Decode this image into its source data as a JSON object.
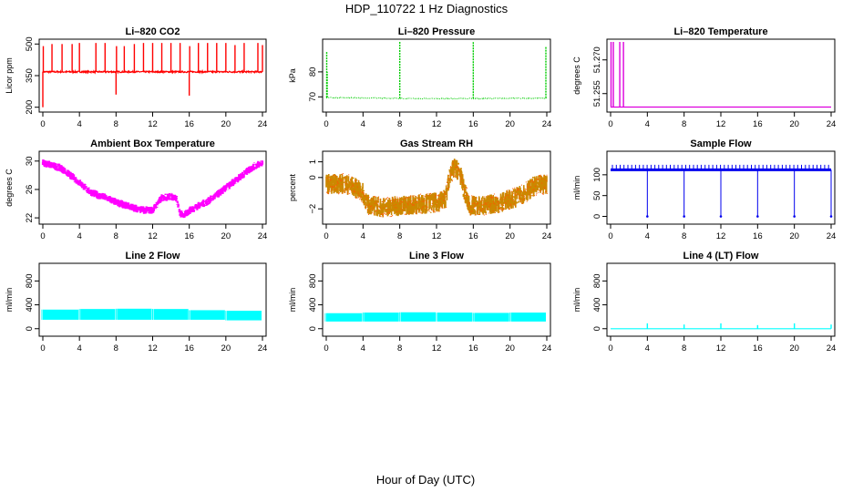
{
  "figure": {
    "title": "HDP_110722  1 Hz Diagnostics",
    "xlabel": "Hour of Day (UTC)"
  },
  "chart_data": [
    {
      "id": "co2",
      "type": "line",
      "title": "Li–820 CO2",
      "ylabel": "Licor ppm",
      "color": "#ff0000",
      "xlim": [
        0,
        24
      ],
      "xticks": [
        "0",
        "4",
        "8",
        "12",
        "16",
        "20",
        "24"
      ],
      "ylim": [
        190,
        510
      ],
      "yticks": [
        {
          "v": 200,
          "t": "200"
        },
        {
          "v": 350,
          "t": "350"
        },
        {
          "v": 500,
          "t": "500"
        }
      ],
      "style": "noisy",
      "noise": 7,
      "base": [
        [
          0,
          368
        ],
        [
          24,
          368
        ]
      ],
      "spikes": [
        [
          0.0,
          200
        ],
        [
          0.05,
          490
        ],
        [
          1,
          500
        ],
        [
          2.1,
          500
        ],
        [
          3.2,
          500
        ],
        [
          4,
          505
        ],
        [
          5.8,
          505
        ],
        [
          6.8,
          505
        ],
        [
          8,
          260
        ],
        [
          8.05,
          490
        ],
        [
          8.9,
          490
        ],
        [
          10,
          500
        ],
        [
          11,
          505
        ],
        [
          12,
          505
        ],
        [
          13,
          505
        ],
        [
          14,
          505
        ],
        [
          15,
          505
        ],
        [
          16,
          255
        ],
        [
          16.05,
          490
        ],
        [
          17,
          505
        ],
        [
          18,
          505
        ],
        [
          19,
          505
        ],
        [
          20,
          505
        ],
        [
          21,
          495
        ],
        [
          22,
          505
        ],
        [
          23.5,
          505
        ],
        [
          24,
          495
        ]
      ]
    },
    {
      "id": "pressure",
      "type": "line",
      "title": "Li–820 Pressure",
      "ylabel": "kPa",
      "color": "#00cc00",
      "xlim": [
        0,
        24
      ],
      "xticks": [
        "0",
        "4",
        "8",
        "12",
        "16",
        "20",
        "24"
      ],
      "ylim": [
        65,
        92
      ],
      "yticks": [
        {
          "v": 70,
          "t": "70"
        },
        {
          "v": 80,
          "t": "80"
        }
      ],
      "style": "dots",
      "noise": 0.3,
      "base": [
        [
          0,
          69.7
        ],
        [
          4,
          69.6
        ],
        [
          8,
          69.4
        ],
        [
          12,
          69.3
        ],
        [
          16,
          69.3
        ],
        [
          20,
          69.4
        ],
        [
          24,
          69.5
        ]
      ],
      "spikes": [
        [
          0.05,
          88
        ],
        [
          0.1,
          80
        ],
        [
          8,
          92
        ],
        [
          16,
          92
        ],
        [
          23.9,
          90
        ]
      ]
    },
    {
      "id": "licor_temp",
      "type": "line",
      "title": "Li–820 Temperature",
      "ylabel": "degrees C",
      "color": "#dd00dd",
      "xlim": [
        0,
        24
      ],
      "xticks": [
        "0",
        "4",
        "8",
        "12",
        "16",
        "20",
        "24"
      ],
      "ylim": [
        51.248,
        51.278
      ],
      "yticks": [
        {
          "v": 51.255,
          "t": "51.255"
        },
        {
          "v": 51.27,
          "t": "51.270"
        }
      ],
      "style": "clean",
      "noise": 0,
      "base": [
        [
          0,
          51.249
        ],
        [
          24,
          51.249
        ]
      ],
      "spikes": [
        [
          0.05,
          51.278
        ],
        [
          0.3,
          51.278
        ],
        [
          1,
          51.278
        ],
        [
          1.4,
          51.278
        ]
      ]
    },
    {
      "id": "box_temp",
      "type": "line",
      "title": "Ambient Box Temperature",
      "ylabel": "degrees C",
      "color": "#ff00ff",
      "xlim": [
        0,
        24
      ],
      "xticks": [
        "0",
        "4",
        "8",
        "12",
        "16",
        "20",
        "24"
      ],
      "ylim": [
        21.5,
        31
      ],
      "yticks": [
        {
          "v": 22,
          "t": "22"
        },
        {
          "v": 26,
          "t": "26"
        },
        {
          "v": 30,
          "t": "30"
        }
      ],
      "style": "band",
      "noise": 1.1,
      "base": [
        [
          0,
          29.8
        ],
        [
          1,
          29.4
        ],
        [
          2,
          29.0
        ],
        [
          3,
          28.0
        ],
        [
          4,
          27.0
        ],
        [
          5,
          25.8
        ],
        [
          6,
          25.2
        ],
        [
          7,
          24.8
        ],
        [
          8,
          24.2
        ],
        [
          9,
          23.8
        ],
        [
          10,
          23.4
        ],
        [
          11,
          23.1
        ],
        [
          12,
          23.1
        ],
        [
          13,
          24.8
        ],
        [
          14,
          25.0
        ],
        [
          14.6,
          24.8
        ],
        [
          15,
          22.6
        ],
        [
          15.5,
          22.4
        ],
        [
          16,
          23.0
        ],
        [
          17,
          23.7
        ],
        [
          18,
          24.3
        ],
        [
          19,
          25.2
        ],
        [
          20,
          26.2
        ],
        [
          21,
          27.2
        ],
        [
          22,
          28.2
        ],
        [
          23,
          29.2
        ],
        [
          24,
          29.8
        ]
      ],
      "spikes": []
    },
    {
      "id": "rh",
      "type": "line",
      "title": "Gas Stream RH",
      "ylabel": "percent",
      "color": "#cc8800",
      "xlim": [
        0,
        24
      ],
      "xticks": [
        "0",
        "4",
        "8",
        "12",
        "16",
        "20",
        "24"
      ],
      "ylim": [
        -2.8,
        1.5
      ],
      "yticks": [
        {
          "v": -2,
          "t": "−2"
        },
        {
          "v": 0,
          "t": "0"
        },
        {
          "v": 1,
          "t": "1"
        }
      ],
      "style": "band2",
      "noise": 1.3,
      "base": [
        [
          0,
          -0.4
        ],
        [
          2,
          -0.4
        ],
        [
          3,
          -0.6
        ],
        [
          4,
          -1.0
        ],
        [
          4.5,
          -1.7
        ],
        [
          6,
          -1.9
        ],
        [
          8,
          -1.8
        ],
        [
          10,
          -1.7
        ],
        [
          12,
          -1.6
        ],
        [
          13,
          -1.3
        ],
        [
          13.5,
          0.3
        ],
        [
          14,
          0.6
        ],
        [
          14.5,
          0.4
        ],
        [
          15,
          -0.8
        ],
        [
          15.5,
          -1.8
        ],
        [
          17,
          -1.8
        ],
        [
          19,
          -1.6
        ],
        [
          21,
          -1.2
        ],
        [
          22.5,
          -0.6
        ],
        [
          24,
          -0.4
        ]
      ],
      "spikes": []
    },
    {
      "id": "sample_flow",
      "type": "line",
      "title": "Sample Flow",
      "ylabel": "ml/min",
      "color": "#0000ee",
      "xlim": [
        0,
        24
      ],
      "xticks": [
        "0",
        "4",
        "8",
        "12",
        "16",
        "20",
        "24"
      ],
      "ylim": [
        -12,
        150
      ],
      "yticks": [
        {
          "v": 0,
          "t": "0"
        },
        {
          "v": 50,
          "t": "50"
        },
        {
          "v": 100,
          "t": "100"
        }
      ],
      "style": "fence",
      "noise": 12,
      "base": [
        [
          0,
          112
        ],
        [
          24,
          112
        ]
      ],
      "spikes": [
        [
          4,
          0
        ],
        [
          8,
          0
        ],
        [
          12,
          0
        ],
        [
          16,
          0
        ],
        [
          20,
          0
        ],
        [
          24,
          0
        ]
      ]
    },
    {
      "id": "line2_flow",
      "type": "line",
      "title": "Line 2 Flow",
      "ylabel": "ml/min",
      "color": "#00ffff",
      "xlim": [
        0,
        24
      ],
      "xticks": [
        "0",
        "4",
        "8",
        "12",
        "16",
        "20",
        "24"
      ],
      "ylim": [
        -80,
        1050
      ],
      "yticks": [
        {
          "v": 0,
          "t": "0"
        },
        {
          "v": 400,
          "t": "400"
        },
        {
          "v": 800,
          "t": "800"
        }
      ],
      "style": "block",
      "noise": 0,
      "segments": [
        [
          0,
          4,
          150,
          320
        ],
        [
          4,
          8,
          150,
          330
        ],
        [
          8,
          12,
          150,
          335
        ],
        [
          12,
          16,
          150,
          330
        ],
        [
          16,
          20,
          150,
          310
        ],
        [
          20,
          24,
          140,
          300
        ]
      ],
      "spikes": []
    },
    {
      "id": "line3_flow",
      "type": "line",
      "title": "Line 3 Flow",
      "ylabel": "ml/min",
      "color": "#00ffff",
      "xlim": [
        0,
        24
      ],
      "xticks": [
        "0",
        "4",
        "8",
        "12",
        "16",
        "20",
        "24"
      ],
      "ylim": [
        -80,
        1050
      ],
      "yticks": [
        {
          "v": 0,
          "t": "0"
        },
        {
          "v": 400,
          "t": "400"
        },
        {
          "v": 800,
          "t": "800"
        }
      ],
      "style": "block",
      "noise": 0,
      "segments": [
        [
          0,
          4,
          120,
          260
        ],
        [
          4,
          8,
          120,
          270
        ],
        [
          8,
          12,
          120,
          275
        ],
        [
          12,
          16,
          120,
          270
        ],
        [
          16,
          20,
          120,
          265
        ],
        [
          20,
          24,
          120,
          270
        ]
      ],
      "spikes": []
    },
    {
      "id": "line4_flow",
      "type": "line",
      "title": "Line 4 (LT) Flow",
      "ylabel": "ml/min",
      "color": "#00ffff",
      "xlim": [
        0,
        24
      ],
      "xticks": [
        "0",
        "4",
        "8",
        "12",
        "16",
        "20",
        "24"
      ],
      "ylim": [
        -80,
        1050
      ],
      "yticks": [
        {
          "v": 0,
          "t": "0"
        },
        {
          "v": 400,
          "t": "400"
        },
        {
          "v": 800,
          "t": "800"
        }
      ],
      "style": "clean",
      "noise": 0,
      "base": [
        [
          0,
          0
        ],
        [
          24,
          0
        ]
      ],
      "spikes": [
        [
          4,
          90
        ],
        [
          8,
          70
        ],
        [
          12,
          90
        ],
        [
          16,
          60
        ],
        [
          20,
          90
        ],
        [
          24,
          70
        ]
      ]
    }
  ]
}
